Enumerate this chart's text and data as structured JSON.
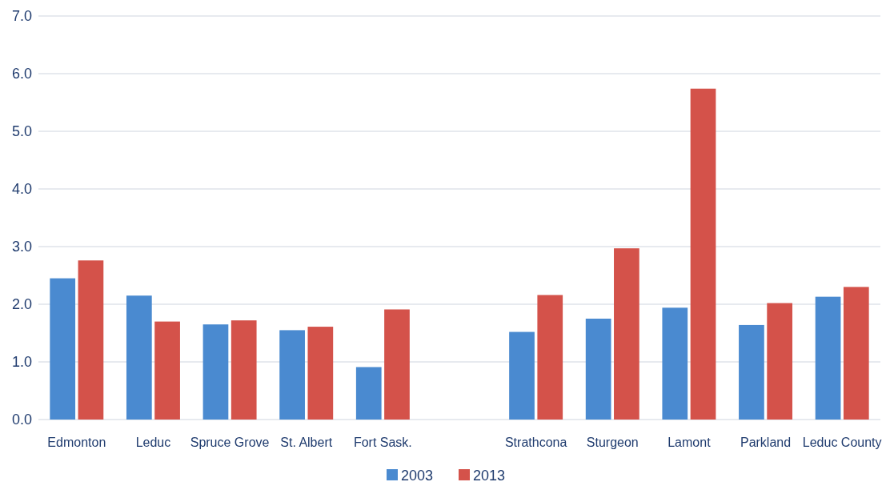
{
  "chart_data": {
    "type": "bar",
    "categories": [
      "Edmonton",
      "Leduc",
      "Spruce Grove",
      "St. Albert",
      "Fort Sask.",
      null,
      "Strathcona",
      "Sturgeon",
      "Lamont",
      "Parkland",
      "Leduc County"
    ],
    "series": [
      {
        "name": "2003",
        "color": "#4a8ad0",
        "values": [
          2.45,
          2.15,
          1.65,
          1.55,
          0.91,
          null,
          1.52,
          1.75,
          1.94,
          1.64,
          2.13
        ]
      },
      {
        "name": "2013",
        "color": "#d4524a",
        "values": [
          2.76,
          1.7,
          1.72,
          1.61,
          1.91,
          null,
          2.16,
          2.97,
          5.74,
          2.02,
          2.3
        ]
      }
    ],
    "ylim": [
      0,
      7
    ],
    "yticks": [
      {
        "value": 0,
        "label": "0.0"
      },
      {
        "value": 1,
        "label": "1.0"
      },
      {
        "value": 2,
        "label": "2.0"
      },
      {
        "value": 3,
        "label": "3.0"
      },
      {
        "value": 4,
        "label": "4.0"
      },
      {
        "value": 5,
        "label": "5.0"
      },
      {
        "value": 6,
        "label": "6.0"
      },
      {
        "value": 7,
        "label": "7.0"
      }
    ],
    "grid": "y",
    "legend": "bottom"
  }
}
